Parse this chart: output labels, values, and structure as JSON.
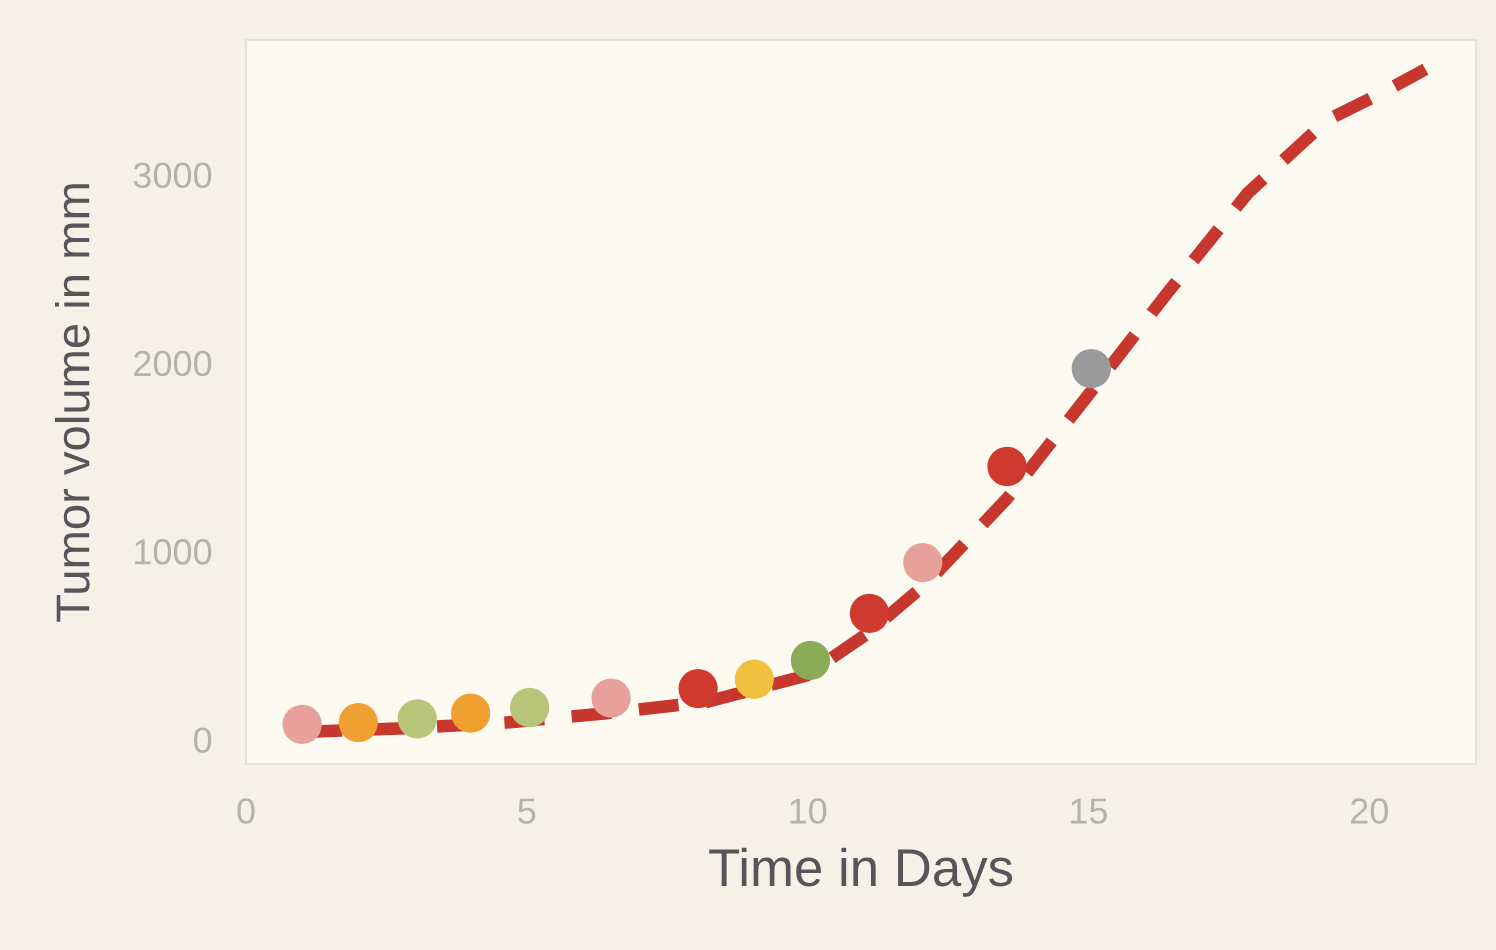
{
  "chart_data": {
    "type": "scatter",
    "xlabel": "Time in Days",
    "ylabel": "Tumor volume in mm",
    "xlim": [
      0,
      21.9
    ],
    "ylim": [
      -130,
      3715
    ],
    "xticks": [
      0,
      5,
      10,
      15,
      20
    ],
    "yticks": [
      0,
      1000,
      2000,
      3000
    ],
    "grid": false,
    "series": [
      {
        "marker": "circle",
        "x": [
          1.0,
          2.0,
          3.05,
          4.0,
          5.05,
          6.5,
          8.05,
          9.05,
          10.05,
          11.1,
          12.05,
          13.55,
          15.05
        ],
        "values": [
          80,
          90,
          110,
          140,
          170,
          220,
          270,
          320,
          420,
          670,
          940,
          1450,
          1970
        ],
        "colors": [
          "#e8a09a",
          "#f0a030",
          "#b8c47a",
          "#f0a030",
          "#b8c47a",
          "#e8a09a",
          "#d0392e",
          "#f0c040",
          "#8aab58",
          "#d0392e",
          "#e8a09a",
          "#d0392e",
          "#9a9a9a"
        ]
      },
      {
        "type": "line",
        "line_style": "dashed",
        "color": "#c8372d",
        "x": [
          1.0,
          2.85,
          4.63,
          6.42,
          8.2,
          9.98,
          11.05,
          12.12,
          13.55,
          14.97,
          16.4,
          17.83,
          19.25,
          20.2,
          21.0
        ],
        "values": [
          40,
          60,
          90,
          140,
          200,
          340,
          560,
          830,
          1280,
          1820,
          2370,
          2900,
          3290,
          3430,
          3560
        ]
      }
    ]
  }
}
